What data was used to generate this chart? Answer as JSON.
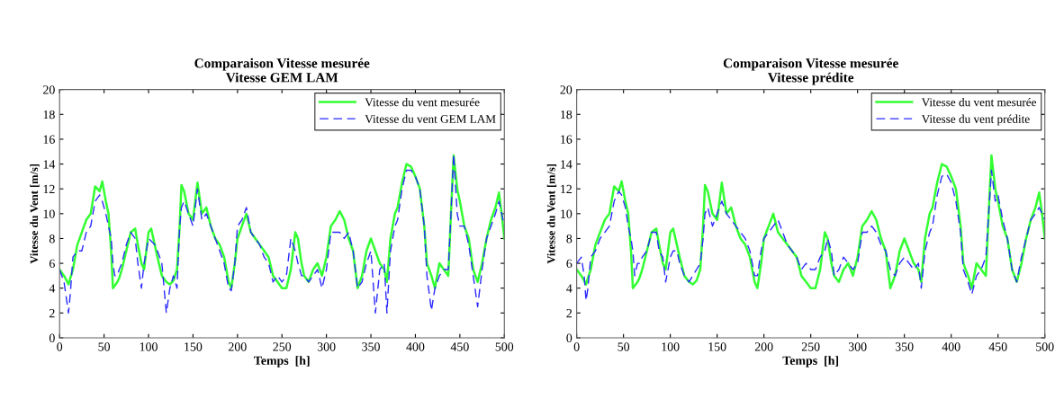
{
  "chart_data": [
    {
      "type": "line",
      "title": "Comparaison Vitesse mesurée\nVitesse GEM LAM",
      "xlabel": "Temps  [h]",
      "ylabel": "Vitesse du Vent [m/s]",
      "x": [
        0,
        5,
        8,
        10,
        12,
        15,
        20,
        25,
        30,
        35,
        40,
        45,
        48,
        52,
        55,
        58,
        60,
        62,
        65,
        67,
        70,
        75,
        80,
        85,
        88,
        92,
        95,
        100,
        103,
        107,
        110,
        115,
        120,
        124,
        128,
        132,
        135,
        137,
        140,
        145,
        150,
        155,
        160,
        165,
        170,
        175,
        180,
        185,
        190,
        193,
        197,
        200,
        205,
        210,
        215,
        220,
        225,
        230,
        235,
        240,
        245,
        250,
        255,
        260,
        265,
        268,
        272,
        275,
        280,
        285,
        290,
        295,
        300,
        305,
        310,
        315,
        320,
        325,
        330,
        335,
        340,
        345,
        350,
        355,
        360,
        365,
        368,
        372,
        377,
        380,
        385,
        390,
        395,
        400,
        405,
        410,
        413,
        418,
        422,
        427,
        432,
        437,
        440,
        443,
        447,
        450,
        455,
        460,
        465,
        470,
        475,
        480,
        485,
        490,
        494,
        497,
        500
      ],
      "series": [
        {
          "name": "Vitesse du vent mesurée",
          "color": "#33ff33",
          "line_style": "solid",
          "values": [
            5.5,
            5,
            4.6,
            4.3,
            4.8,
            5.5,
            7.5,
            8.5,
            9.5,
            10,
            12.2,
            11.8,
            12.6,
            11,
            10,
            7,
            4,
            4.2,
            4.5,
            4.8,
            5.5,
            7,
            8.5,
            8.8,
            7.5,
            6,
            5.5,
            8.5,
            8.8,
            7.5,
            6.5,
            5,
            4.5,
            4.3,
            4.6,
            5.5,
            9,
            12.3,
            11.8,
            10,
            9.5,
            12.5,
            10,
            10.5,
            9,
            8,
            7.5,
            6.5,
            4.5,
            4,
            6,
            8,
            9,
            10,
            8.5,
            8,
            7.5,
            7,
            6.5,
            5,
            4.5,
            4,
            4,
            5.5,
            8.5,
            8,
            6,
            5,
            4.5,
            5.5,
            6,
            5,
            6.5,
            9,
            9.5,
            10.2,
            9.5,
            8,
            7,
            4,
            5,
            7,
            8,
            7,
            6,
            5.5,
            4.5,
            8,
            10,
            10.5,
            12.5,
            14,
            13.8,
            13,
            12,
            9,
            6,
            5,
            4,
            6,
            5.5,
            5,
            10,
            14.7,
            12,
            11,
            9,
            8,
            5.5,
            4.5,
            6,
            8,
            9.5,
            10.5,
            11.7,
            10,
            8
          ]
        },
        {
          "name": "Vitesse du vent GEM LAM",
          "color": "#2a2aff",
          "line_style": "dashed",
          "values": [
            5.5,
            4.5,
            3,
            2,
            3.5,
            6.5,
            7,
            7,
            8.5,
            9,
            11,
            11.5,
            11,
            10,
            9,
            8,
            6,
            5,
            5,
            5.5,
            6,
            7.5,
            8.5,
            8,
            6,
            4,
            6,
            8,
            7.8,
            7.5,
            7,
            6,
            2,
            4,
            5,
            4,
            9,
            10.5,
            11,
            10,
            9,
            12,
            9.5,
            10,
            9,
            8,
            7,
            6,
            4,
            3.8,
            6,
            9,
            9.5,
            10.5,
            8.5,
            8,
            7.5,
            6.5,
            6,
            4.5,
            5,
            4.5,
            5,
            8,
            7,
            6,
            5,
            5,
            4.5,
            5,
            5.5,
            4,
            5.5,
            8.5,
            8.5,
            8.5,
            8,
            8.5,
            7,
            4,
            4.5,
            6,
            7,
            2,
            5.5,
            6,
            2,
            7,
            9,
            9.5,
            12,
            13.5,
            13.5,
            13,
            12,
            9,
            5,
            2.2,
            4,
            5,
            5.5,
            5.5,
            10,
            14.8,
            10,
            9,
            9,
            7.5,
            5,
            2.5,
            5.5,
            8,
            9,
            10,
            11,
            10,
            9
          ]
        }
      ],
      "xlim": [
        0,
        500
      ],
      "xticks": [
        0,
        50,
        100,
        150,
        200,
        250,
        300,
        350,
        400,
        450,
        500
      ],
      "ylim": [
        0,
        20
      ],
      "yticks": [
        0,
        2,
        4,
        6,
        8,
        10,
        12,
        14,
        16,
        18,
        20
      ],
      "legend": "top right",
      "grid": false
    },
    {
      "type": "line",
      "title": "Comparaison Vitesse mesurée\nVitesse prédite",
      "xlabel": "Temps  [h]",
      "ylabel": "Vitesse du Vent [m/s]",
      "x": [
        0,
        5,
        8,
        10,
        12,
        15,
        20,
        25,
        30,
        35,
        40,
        45,
        48,
        52,
        55,
        58,
        60,
        62,
        65,
        67,
        70,
        75,
        80,
        85,
        88,
        92,
        95,
        100,
        103,
        107,
        110,
        115,
        120,
        124,
        128,
        132,
        135,
        137,
        140,
        145,
        150,
        155,
        160,
        165,
        170,
        175,
        180,
        185,
        190,
        193,
        197,
        200,
        205,
        210,
        215,
        220,
        225,
        230,
        235,
        240,
        245,
        250,
        255,
        260,
        265,
        268,
        272,
        275,
        280,
        285,
        290,
        295,
        300,
        305,
        310,
        315,
        320,
        325,
        330,
        335,
        340,
        345,
        350,
        355,
        360,
        365,
        368,
        372,
        377,
        380,
        385,
        390,
        395,
        400,
        405,
        410,
        413,
        418,
        422,
        427,
        432,
        437,
        440,
        443,
        447,
        450,
        455,
        460,
        465,
        470,
        475,
        480,
        485,
        490,
        494,
        497,
        500
      ],
      "series": [
        {
          "name": "Vitesse du vent mesurée",
          "color": "#33ff33",
          "line_style": "solid",
          "values": [
            5.5,
            5,
            4.6,
            4.3,
            4.8,
            5.5,
            7.5,
            8.5,
            9.5,
            10,
            12.2,
            11.8,
            12.6,
            11,
            10,
            7,
            4,
            4.2,
            4.5,
            4.8,
            5.5,
            7,
            8.5,
            8.8,
            7.5,
            6,
            5.5,
            8.5,
            8.8,
            7.5,
            6.5,
            5,
            4.5,
            4.3,
            4.6,
            5.5,
            9,
            12.3,
            11.8,
            10,
            9.5,
            12.5,
            10,
            10.5,
            9,
            8,
            7.5,
            6.5,
            4.5,
            4,
            6,
            8,
            9,
            10,
            8.5,
            8,
            7.5,
            7,
            6.5,
            5,
            4.5,
            4,
            4,
            5.5,
            8.5,
            8,
            6,
            5,
            4.5,
            5.5,
            6,
            5,
            6.5,
            9,
            9.5,
            10.2,
            9.5,
            8,
            7,
            4,
            5,
            7,
            8,
            7,
            6,
            5.5,
            4.5,
            8,
            10,
            10.5,
            12.5,
            14,
            13.8,
            13,
            12,
            9,
            6,
            5,
            4,
            6,
            5.5,
            5,
            10,
            14.7,
            12,
            11,
            9,
            8,
            5.5,
            4.5,
            6,
            8,
            9.5,
            10.5,
            11.7,
            10,
            8
          ]
        },
        {
          "name": "Vitesse du vent prédite",
          "color": "#2a2aff",
          "line_style": "dashed",
          "values": [
            6,
            6.5,
            5,
            3,
            4,
            6.5,
            7,
            8,
            8.5,
            9,
            11,
            11.8,
            11.5,
            10.5,
            9,
            8,
            7,
            5,
            6,
            6,
            6.5,
            7,
            8.5,
            8.5,
            7,
            6.5,
            4.5,
            6.5,
            7,
            7,
            6,
            5,
            4.5,
            5,
            5.5,
            6,
            8,
            10,
            10.5,
            9,
            10,
            11,
            10,
            9.5,
            9,
            8.5,
            8,
            7,
            5,
            5,
            7,
            8,
            8.5,
            9,
            9.5,
            8.5,
            7.5,
            7,
            6.5,
            5.5,
            6,
            5.5,
            5.5,
            6.5,
            7,
            8,
            7,
            5,
            5.5,
            6.5,
            6,
            5.5,
            6,
            8.5,
            8.5,
            9,
            8.5,
            7.5,
            7,
            5.5,
            5,
            6,
            6.5,
            6,
            5.5,
            6,
            4,
            7,
            8.5,
            9,
            11.5,
            13,
            13.2,
            12.5,
            11,
            8.5,
            5.5,
            4.5,
            3.5,
            5,
            5.5,
            6.5,
            10,
            13.5,
            11,
            11.5,
            9.5,
            8,
            5.5,
            4.5,
            6.5,
            8,
            9.5,
            10,
            10.5,
            10,
            9.5
          ]
        }
      ],
      "xlim": [
        0,
        500
      ],
      "xticks": [
        0,
        50,
        100,
        150,
        200,
        250,
        300,
        350,
        400,
        450,
        500
      ],
      "ylim": [
        0,
        20
      ],
      "yticks": [
        0,
        2,
        4,
        6,
        8,
        10,
        12,
        14,
        16,
        18,
        20
      ],
      "legend": "top right",
      "grid": false
    }
  ]
}
